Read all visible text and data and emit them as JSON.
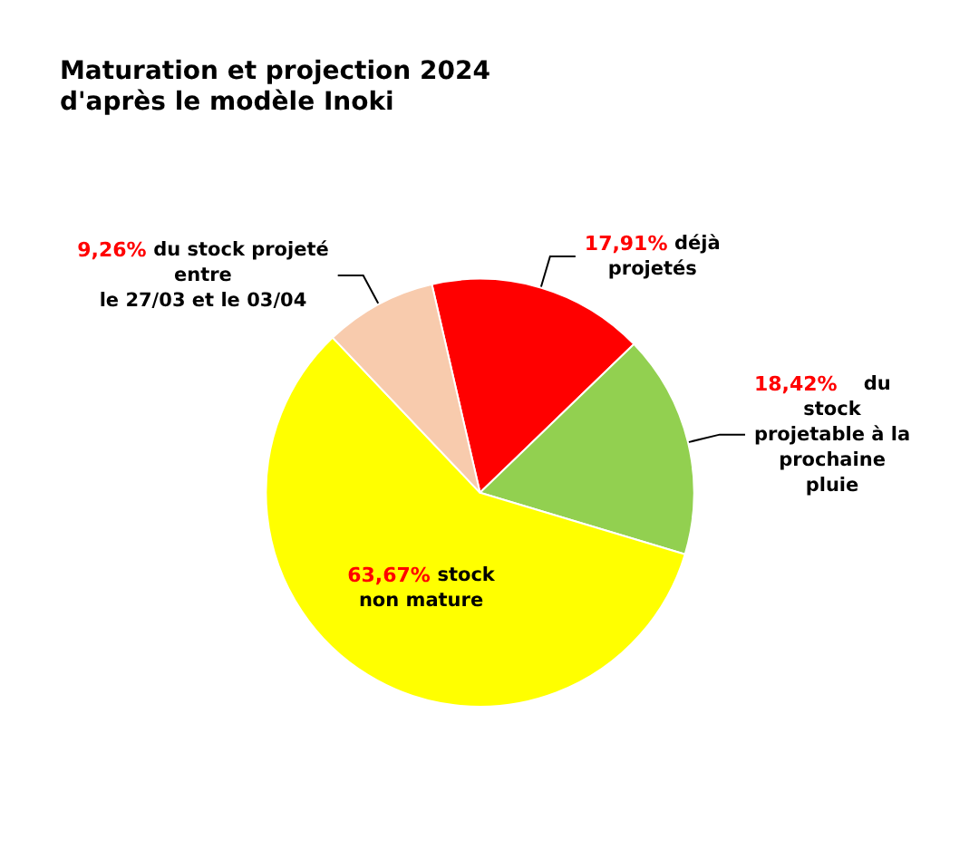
{
  "chart_data": {
    "type": "pie",
    "title": "Maturation et projection 2024\nd'après le modèle Inoki",
    "categories": [
      "déjà\nprojetés",
      "du\nstock\nprojetable à la\nprochaine\npluie",
      "stock\nnon mature",
      "du stock projeté\nentre\nle 27/03 et le 03/04"
    ],
    "values": [
      17.91,
      18.42,
      63.67,
      9.26
    ],
    "value_labels": [
      "17,91%",
      "18,42%",
      "63,67%",
      "9,26%"
    ],
    "colors": [
      "#ff0000",
      "#92d050",
      "#ffff00",
      "#f8cbad"
    ]
  }
}
